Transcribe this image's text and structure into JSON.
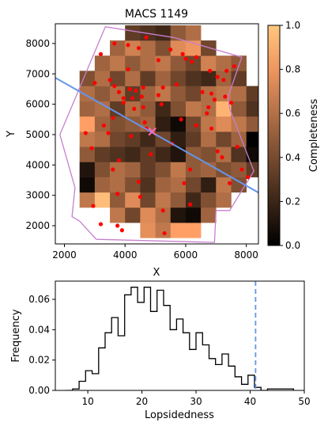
{
  "chart_data": [
    {
      "type": "heatmap",
      "title": "MACS 1149",
      "xlabel": "X",
      "ylabel": "Y",
      "xlim": [
        1700,
        8400
      ],
      "ylim": [
        1400,
        8650
      ],
      "xticks": [
        2000,
        4000,
        6000,
        8000
      ],
      "yticks": [
        2000,
        3000,
        4000,
        5000,
        6000,
        7000,
        8000
      ],
      "colorbar": {
        "label": "Completeness",
        "range": [
          0.0,
          1.0
        ],
        "ticks": [
          0.0,
          0.2,
          0.4,
          0.6,
          0.8,
          1.0
        ],
        "colormap": "copper"
      },
      "grid": {
        "x0": 2500,
        "y0": 1600,
        "cell": 500,
        "ncols": 12,
        "nrows": 14,
        "rows_bottom_to_top": [
          [
            null,
            null,
            null,
            null,
            0.72,
            0.6,
            0.8,
            0.8,
            null,
            null,
            null,
            null
          ],
          [
            null,
            null,
            0.6,
            0.35,
            0.7,
            0.55,
            0.1,
            0.05,
            0.5,
            null,
            null,
            null
          ],
          [
            0.6,
            0.95,
            0.45,
            0.7,
            0.35,
            0.6,
            0.45,
            0.2,
            0.4,
            0.55,
            null,
            null
          ],
          [
            0.05,
            0.5,
            0.55,
            0.4,
            0.25,
            0.5,
            0.55,
            0.35,
            0.15,
            0.6,
            0.4,
            null
          ],
          [
            0.1,
            0.4,
            0.55,
            0.5,
            0.3,
            0.4,
            0.6,
            0.45,
            0.5,
            0.4,
            0.45,
            0.3
          ],
          [
            0.45,
            0.3,
            0.25,
            0.2,
            0.3,
            0.2,
            0.1,
            0.45,
            0.4,
            0.55,
            0.25,
            0.05
          ],
          [
            0.6,
            0.55,
            0.35,
            0.3,
            0.2,
            0.35,
            0.15,
            0.3,
            0.55,
            0.35,
            0.5,
            0.0
          ],
          [
            0.8,
            0.5,
            0.4,
            0.45,
            0.5,
            0.15,
            0.05,
            0.35,
            0.6,
            0.7,
            0.6,
            0.45
          ],
          [
            0.5,
            0.55,
            0.3,
            0.55,
            0.45,
            0.2,
            0.4,
            0.6,
            0.55,
            0.9,
            0.45,
            0.25
          ],
          [
            0.55,
            0.45,
            0.55,
            0.3,
            0.5,
            0.6,
            0.45,
            0.35,
            0.55,
            0.6,
            0.55,
            0.3
          ],
          [
            0.4,
            0.55,
            0.35,
            0.55,
            0.3,
            0.5,
            0.35,
            0.25,
            0.2,
            0.5,
            0.3,
            null
          ],
          [
            null,
            0.5,
            0.6,
            0.45,
            0.55,
            0.6,
            0.45,
            0.35,
            0.65,
            0.55,
            0.45,
            null
          ],
          [
            null,
            null,
            0.5,
            0.65,
            0.55,
            0.4,
            0.7,
            0.75,
            0.35,
            null,
            null,
            null
          ],
          [
            null,
            null,
            null,
            0.3,
            0.25,
            0.2,
            0.45,
            0.55,
            null,
            null,
            null,
            null
          ]
        ]
      },
      "footprint": [
        [
          2500,
          2150
        ],
        [
          3050,
          1550
        ],
        [
          6950,
          1450
        ],
        [
          7000,
          2500
        ],
        [
          7450,
          2500
        ],
        [
          8250,
          3800
        ],
        [
          7450,
          5850
        ],
        [
          7400,
          6250
        ],
        [
          7850,
          7550
        ],
        [
          5600,
          8200
        ],
        [
          3350,
          8550
        ],
        [
          1850,
          5000
        ],
        [
          2350,
          3250
        ],
        [
          2250,
          2300
        ]
      ],
      "line": {
        "x": [
          1700,
          8400
        ],
        "y": [
          6870,
          3090
        ],
        "color": "#6495ed"
      },
      "center_marker": {
        "x": 4900,
        "y": 5100,
        "color": "#ff69b4"
      },
      "points": [
        [
          3200,
          7650
        ],
        [
          3650,
          8000
        ],
        [
          4100,
          7950
        ],
        [
          4450,
          7850
        ],
        [
          4700,
          8200
        ],
        [
          5500,
          7800
        ],
        [
          5900,
          7650
        ],
        [
          6350,
          7550
        ],
        [
          6000,
          7500
        ],
        [
          6200,
          7400
        ],
        [
          5100,
          7450
        ],
        [
          4100,
          7150
        ],
        [
          7600,
          7250
        ],
        [
          6800,
          7100
        ],
        [
          7350,
          7100
        ],
        [
          7050,
          6900
        ],
        [
          7250,
          6800
        ],
        [
          3000,
          6700
        ],
        [
          3500,
          6800
        ],
        [
          3650,
          6600
        ],
        [
          3800,
          6400
        ],
        [
          4150,
          6500
        ],
        [
          4350,
          6450
        ],
        [
          4600,
          6550
        ],
        [
          5250,
          6550
        ],
        [
          5700,
          6650
        ],
        [
          6550,
          6400
        ],
        [
          6850,
          6350
        ],
        [
          6950,
          6150
        ],
        [
          7500,
          6050
        ],
        [
          7300,
          6250
        ],
        [
          3950,
          6200
        ],
        [
          4250,
          6200
        ],
        [
          4550,
          6250
        ],
        [
          5100,
          6300
        ],
        [
          6750,
          5900
        ],
        [
          6700,
          5700
        ],
        [
          3950,
          6050
        ],
        [
          4300,
          5850
        ],
        [
          4600,
          5900
        ],
        [
          5200,
          6000
        ],
        [
          3600,
          5550
        ],
        [
          3300,
          5300
        ],
        [
          3450,
          5050
        ],
        [
          2700,
          5050
        ],
        [
          4650,
          5400
        ],
        [
          5850,
          5500
        ],
        [
          6350,
          5300
        ],
        [
          6850,
          5200
        ],
        [
          4700,
          5200
        ],
        [
          4200,
          4950
        ],
        [
          5550,
          4700
        ],
        [
          2900,
          4550
        ],
        [
          4850,
          4350
        ],
        [
          3800,
          4150
        ],
        [
          3600,
          3850
        ],
        [
          7050,
          4450
        ],
        [
          7200,
          4250
        ],
        [
          7700,
          4600
        ],
        [
          6150,
          3850
        ],
        [
          7850,
          3850
        ],
        [
          8050,
          3600
        ],
        [
          4450,
          3450
        ],
        [
          5950,
          3400
        ],
        [
          7450,
          3400
        ],
        [
          3750,
          3050
        ],
        [
          4500,
          2950
        ],
        [
          6150,
          2700
        ],
        [
          2950,
          2650
        ],
        [
          5250,
          2500
        ],
        [
          3200,
          2050
        ],
        [
          3750,
          2000
        ],
        [
          3900,
          1850
        ],
        [
          5300,
          1750
        ]
      ]
    },
    {
      "type": "histogram",
      "xlabel": "Lopsidedness",
      "ylabel": "Frequency",
      "xlim": [
        4,
        50
      ],
      "ylim": [
        0,
        0.072
      ],
      "xticks": [
        10,
        20,
        30,
        40,
        50
      ],
      "yticks": [
        0.0,
        0.02,
        0.04,
        0.06
      ],
      "ytick_labels": [
        "0.00",
        "0.02",
        "0.04",
        "0.06"
      ],
      "bin_edges": [
        6,
        7.2,
        8.4,
        9.6,
        10.8,
        12,
        13.2,
        14.4,
        15.6,
        16.8,
        18,
        19.2,
        20.4,
        21.6,
        22.8,
        24,
        25.2,
        26.4,
        27.6,
        28.8,
        30,
        31.2,
        32.4,
        33.6,
        34.8,
        36,
        37.2,
        38.4,
        39.6,
        40.8,
        42,
        43.2,
        44.4,
        45.6,
        46.8,
        48
      ],
      "values": [
        0.0,
        0.001,
        0.006,
        0.013,
        0.011,
        0.028,
        0.038,
        0.048,
        0.036,
        0.063,
        0.068,
        0.058,
        0.068,
        0.052,
        0.066,
        0.056,
        0.04,
        0.047,
        0.038,
        0.027,
        0.038,
        0.03,
        0.021,
        0.017,
        0.024,
        0.016,
        0.009,
        0.004,
        0.01,
        0.002,
        0.0,
        0.001,
        0.001,
        0.001,
        0.001
      ],
      "vline": {
        "x": 41,
        "color": "#6495ed",
        "style": "dashed"
      }
    }
  ]
}
